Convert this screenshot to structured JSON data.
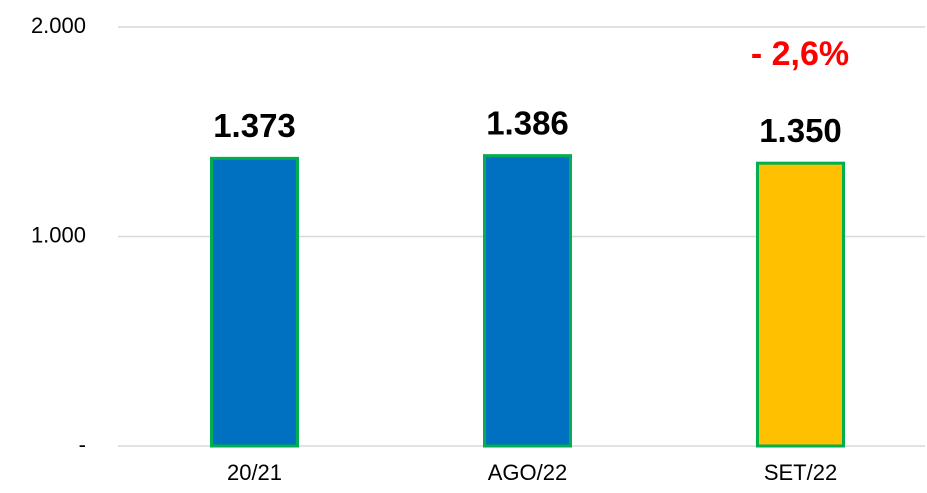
{
  "chart_data": {
    "type": "bar",
    "categories": [
      "20/21",
      "AGO/22",
      "SET/22"
    ],
    "values": [
      1373,
      1386,
      1350
    ],
    "value_labels": [
      "1.373",
      "1.386",
      "1.350"
    ],
    "colors": [
      "#0070c0",
      "#0070c0",
      "#ffc000"
    ],
    "edge_color": "#00b050",
    "annotation": "- 2,6%",
    "ylim": [
      0,
      2000
    ],
    "yticks": [
      {
        "value": 0,
        "label": "-"
      },
      {
        "value": 1000,
        "label": "1.000"
      },
      {
        "value": 2000,
        "label": "2.000"
      }
    ],
    "grid": true
  }
}
